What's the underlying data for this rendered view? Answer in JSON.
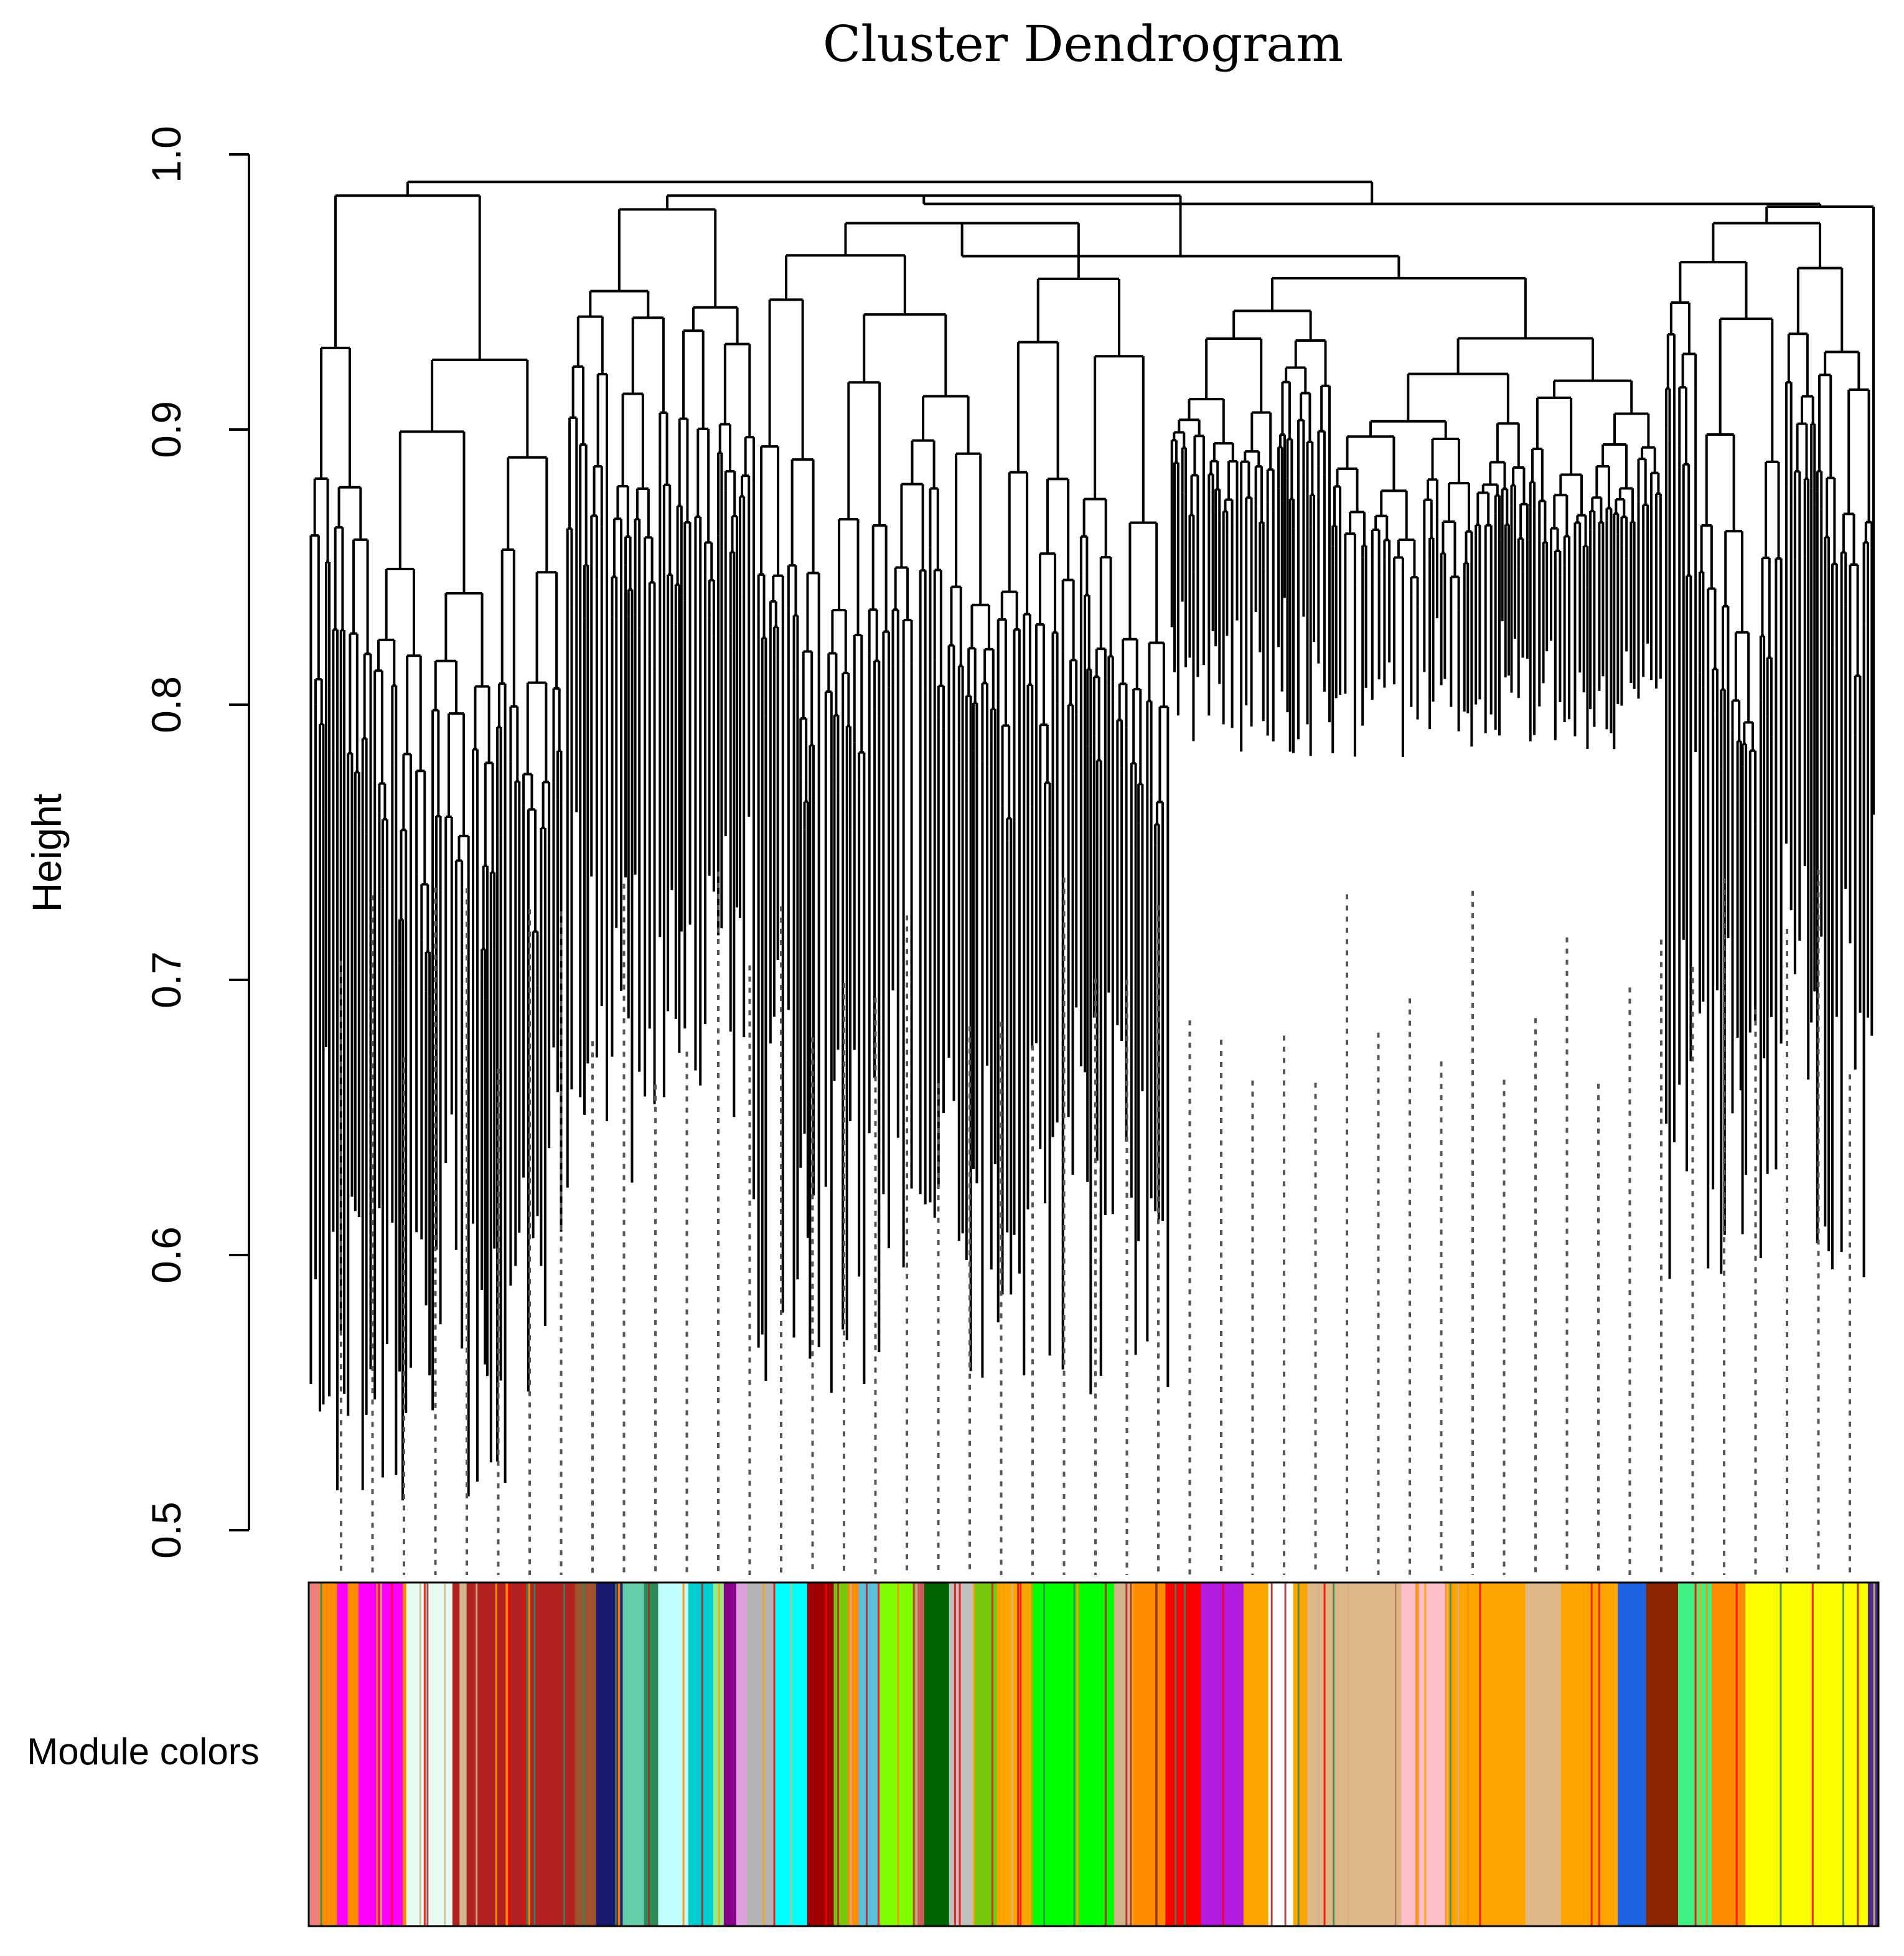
{
  "chart_data": {
    "type": "dendrogram",
    "title": "Cluster Dendrogram",
    "ylabel": "Height",
    "xlabel": "",
    "ylim": [
      0.5,
      1.0
    ],
    "yticks": [
      "0.5",
      "0.6",
      "0.7",
      "0.8",
      "0.9",
      "1.0"
    ],
    "ytick_values": [
      0.5,
      0.6,
      0.7,
      0.8,
      0.9,
      1.0
    ],
    "color_bar_label": "Module colors",
    "root_height": 0.99,
    "clusters": [
      {
        "merge": 0.99,
        "min_leaf": 0.51,
        "members": "left block"
      },
      {
        "merge": 0.985,
        "min_leaf": 0.62,
        "members": "centre-left block"
      },
      {
        "merge": 0.98,
        "min_leaf": 0.545,
        "members": "centre block"
      },
      {
        "merge": 0.96,
        "min_leaf": 0.78,
        "members": "centre-right block"
      },
      {
        "merge": 0.98,
        "min_leaf": 0.59,
        "members": "right block"
      }
    ],
    "module_colors": [
      {
        "color": "#f08080",
        "frac": 0.006
      },
      {
        "color": "#ff8c00",
        "frac": 0.01
      },
      {
        "color": "#ff00ff",
        "frac": 0.006
      },
      {
        "color": "#ff8c00",
        "frac": 0.006
      },
      {
        "color": "#ff00ff",
        "frac": 0.025
      },
      {
        "color": "#ff8c00",
        "frac": 0.002
      },
      {
        "color": "#e6faef",
        "frac": 0.026
      },
      {
        "color": "#b22222",
        "frac": 0.004
      },
      {
        "color": "#d2b48c",
        "frac": 0.004
      },
      {
        "color": "#b22222",
        "frac": 0.022
      },
      {
        "color": "#ff8c00",
        "frac": 0.002
      },
      {
        "color": "#b22222",
        "frac": 0.037
      },
      {
        "color": "#a0522d",
        "frac": 0.012
      },
      {
        "color": "#191970",
        "frac": 0.015
      },
      {
        "color": "#66cdaa",
        "frac": 0.012
      },
      {
        "color": "#2e8b57",
        "frac": 0.008
      },
      {
        "color": "#bfffff",
        "frac": 0.017
      },
      {
        "color": "#00ced1",
        "frac": 0.014
      },
      {
        "color": "#90ee90",
        "frac": 0.006
      },
      {
        "color": "#8b008b",
        "frac": 0.007
      },
      {
        "color": "#dda0dd",
        "frac": 0.006
      },
      {
        "color": "#b5b5b5",
        "frac": 0.016
      },
      {
        "color": "#00ffff",
        "frac": 0.018
      },
      {
        "color": "#a00000",
        "frac": 0.015
      },
      {
        "color": "#76c80c",
        "frac": 0.008
      },
      {
        "color": "#ff8c00",
        "frac": 0.006
      },
      {
        "color": "#5bc0de",
        "frac": 0.012
      },
      {
        "color": "#7fff00",
        "frac": 0.02
      },
      {
        "color": "#cd5c5c",
        "frac": 0.005
      },
      {
        "color": "#006400",
        "frac": 0.014
      },
      {
        "color": "#c0c0c0",
        "frac": 0.014
      },
      {
        "color": "#76c80c",
        "frac": 0.013
      },
      {
        "color": "#ffa500",
        "frac": 0.019
      },
      {
        "color": "#00ff00",
        "frac": 0.047
      },
      {
        "color": "#d2b48c",
        "frac": 0.011
      },
      {
        "color": "#ff8c00",
        "frac": 0.018
      },
      {
        "color": "#ff0000",
        "frac": 0.02
      },
      {
        "color": "#b51ae0",
        "frac": 0.024
      },
      {
        "color": "#ffa500",
        "frac": 0.014
      },
      {
        "color": "#ffffff",
        "frac": 0.014
      },
      {
        "color": "#ffa500",
        "frac": 0.008
      },
      {
        "color": "#deb887",
        "frac": 0.053
      },
      {
        "color": "#ffc0cb",
        "frac": 0.026
      },
      {
        "color": "#ffa500",
        "frac": 0.044
      },
      {
        "color": "#deb887",
        "frac": 0.02
      },
      {
        "color": "#ffa500",
        "frac": 0.032
      },
      {
        "color": "#1f62e0",
        "frac": 0.016
      },
      {
        "color": "#8b2500",
        "frac": 0.018
      },
      {
        "color": "#40f080",
        "frac": 0.019
      },
      {
        "color": "#ff8c00",
        "frac": 0.019
      },
      {
        "color": "#ffff00",
        "frac": 0.069
      },
      {
        "color": "#4b3080",
        "frac": 0.006
      }
    ]
  }
}
